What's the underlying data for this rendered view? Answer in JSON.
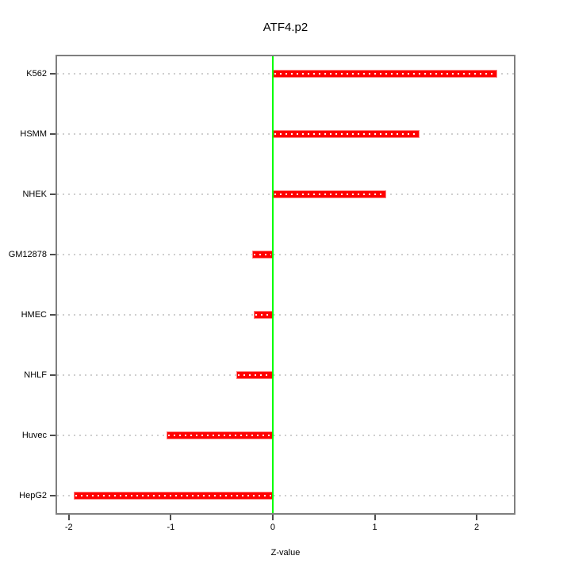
{
  "chart_data": {
    "type": "bar",
    "orientation": "horizontal",
    "title": "ATF4.p2",
    "xlabel": "Z-value",
    "ylabel": "",
    "categories": [
      "K562",
      "HSMM",
      "NHEK",
      "GM12878",
      "HMEC",
      "NHLF",
      "Huvec",
      "HepG2"
    ],
    "values": [
      2.2,
      1.44,
      1.11,
      -0.2,
      -0.19,
      -0.36,
      -1.04,
      -1.95
    ],
    "x_ticks": [
      -2,
      -1,
      0,
      1,
      2
    ],
    "xlim": [
      -2.115,
      2.365
    ],
    "grid": "horizontal dotted per category",
    "legend": "none",
    "bar_color": "#ff0000",
    "bar_edge_color": "#ff8080",
    "zero_line_color": "#00ff00",
    "grid_color": "#cfcfcf",
    "frame_color": "#7f7f7f",
    "background_color": "#ffffff"
  }
}
